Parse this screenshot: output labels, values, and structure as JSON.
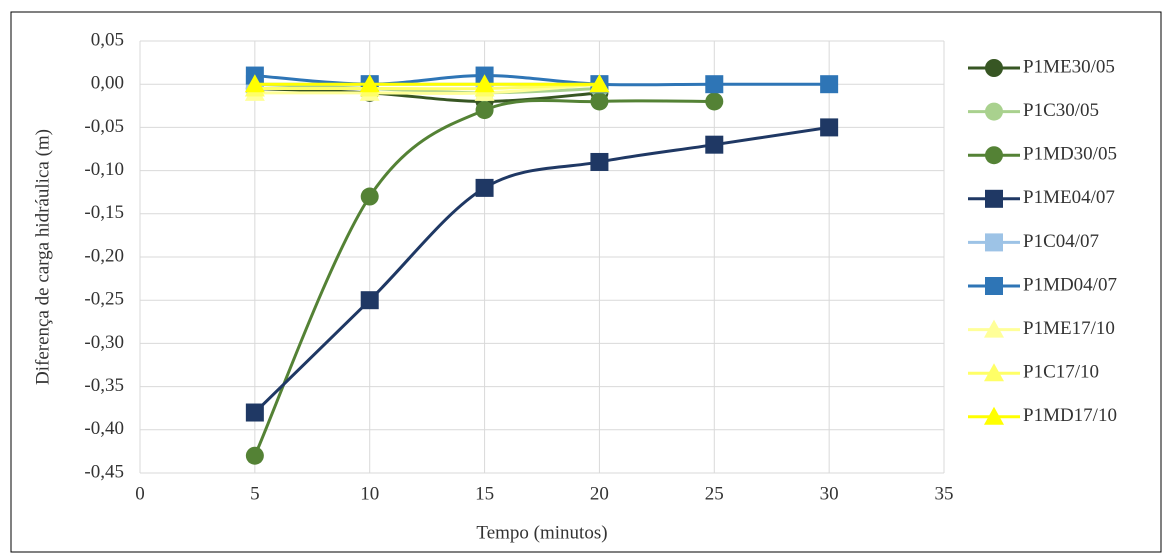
{
  "chart_data": {
    "type": "line",
    "x_label": "Tempo (minutos)",
    "y_label": "Diferença de carga hidráulica (m)",
    "xlim": [
      0,
      35
    ],
    "xticks": [
      0,
      5,
      10,
      15,
      20,
      25,
      30,
      35
    ],
    "ylim": [
      -0.45,
      0.05
    ],
    "yticks": [
      {
        "value": 0.05,
        "label": "0,05"
      },
      {
        "value": 0,
        "label": "0,00"
      },
      {
        "value": -0.05,
        "label": "-0,05"
      },
      {
        "value": -0.1,
        "label": "-0,10"
      },
      {
        "value": -0.15,
        "label": "-0,15"
      },
      {
        "value": -0.2,
        "label": "-0,20"
      },
      {
        "value": -0.25,
        "label": "-0,25"
      },
      {
        "value": -0.3,
        "label": "-0,30"
      },
      {
        "value": -0.35,
        "label": "-0,35"
      },
      {
        "value": -0.4,
        "label": "-0,40"
      },
      {
        "value": -0.45,
        "label": "-0,45"
      }
    ],
    "grid": true,
    "smooth": true,
    "legend": "right",
    "series": [
      {
        "name": "P1ME30/05",
        "color": "#375623",
        "marker": "circle",
        "x": [
          5,
          10,
          15,
          20
        ],
        "values": [
          -0.005,
          -0.01,
          -0.02,
          -0.01
        ]
      },
      {
        "name": "P1C30/05",
        "color": "#a9d18e",
        "marker": "circle",
        "x": [
          5,
          10,
          15,
          20
        ],
        "values": [
          0,
          -0.005,
          -0.01,
          -0.005
        ]
      },
      {
        "name": "P1MD30/05",
        "color": "#548235",
        "marker": "circle",
        "x": [
          5,
          10,
          15,
          20,
          25
        ],
        "values": [
          -0.43,
          -0.13,
          -0.03,
          -0.02,
          -0.02
        ]
      },
      {
        "name": "P1ME04/07",
        "color": "#1f3864",
        "marker": "square",
        "x": [
          5,
          10,
          15,
          20,
          25,
          30
        ],
        "values": [
          -0.38,
          -0.25,
          -0.12,
          -0.09,
          -0.07,
          -0.05
        ]
      },
      {
        "name": "P1C04/07",
        "color": "#9dc3e6",
        "marker": "square",
        "x": [
          5,
          10,
          15,
          20
        ],
        "values": [
          0,
          0,
          0,
          0
        ]
      },
      {
        "name": "P1MD04/07",
        "color": "#2e75b6",
        "marker": "square",
        "x": [
          5,
          10,
          15,
          20,
          25,
          30
        ],
        "values": [
          0.01,
          0,
          0.01,
          0,
          0,
          0
        ]
      },
      {
        "name": "P1ME17/10",
        "color": "#ffff99",
        "marker": "triangle",
        "x": [
          5,
          10,
          15,
          20
        ],
        "values": [
          -0.01,
          -0.01,
          -0.01,
          0
        ]
      },
      {
        "name": "P1C17/10",
        "color": "#ffff66",
        "marker": "triangle",
        "x": [
          5,
          10,
          15,
          20
        ],
        "values": [
          -0.005,
          -0.005,
          -0.005,
          0
        ]
      },
      {
        "name": "P1MD17/10",
        "color": "#ffff00",
        "marker": "triangle",
        "x": [
          5,
          10,
          15,
          20
        ],
        "values": [
          0,
          0,
          0,
          0
        ]
      }
    ]
  }
}
